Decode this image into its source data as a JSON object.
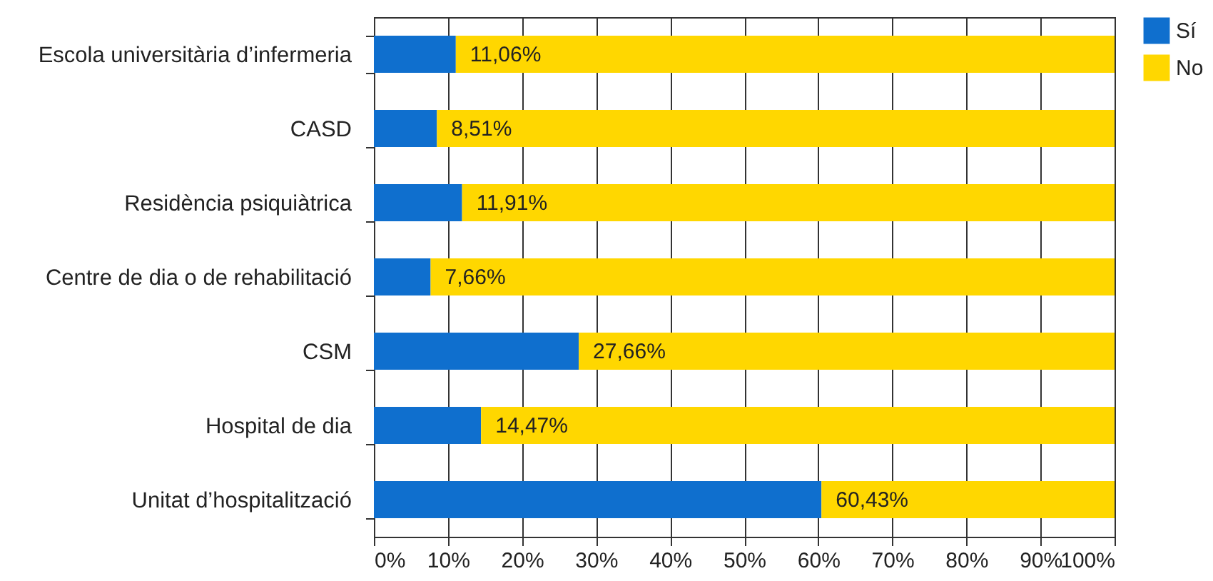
{
  "chart_data": {
    "type": "bar",
    "orientation": "horizontal",
    "stacked": true,
    "categories": [
      "Escola universitària d’infermeria",
      "CASD",
      "Residència psiquiàtrica",
      "Centre de dia o de rehabilitació",
      "CSM",
      "Hospital de dia",
      "Unitat d’hospitalització"
    ],
    "series": [
      {
        "name": "Sí",
        "color": "#0f6fce",
        "values": [
          11.06,
          8.51,
          11.91,
          7.66,
          27.66,
          14.47,
          60.43
        ],
        "value_labels": [
          "11,06%",
          "8,51%",
          "11,91%",
          "7,66%",
          "27,66%",
          "14,47%",
          "60,43%"
        ]
      },
      {
        "name": "No",
        "color": "#ffd700",
        "values": [
          88.94,
          91.49,
          88.09,
          92.34,
          72.34,
          85.53,
          39.57
        ]
      }
    ],
    "xlim": [
      0,
      100
    ],
    "xticks": [
      {
        "value": 0,
        "label": "0%"
      },
      {
        "value": 10,
        "label": "10%"
      },
      {
        "value": 20,
        "label": "20%"
      },
      {
        "value": 30,
        "label": "30%"
      },
      {
        "value": 40,
        "label": "40%"
      },
      {
        "value": 50,
        "label": "50%"
      },
      {
        "value": 60,
        "label": "60%"
      },
      {
        "value": 70,
        "label": "70%"
      },
      {
        "value": 80,
        "label": "80%"
      },
      {
        "value": 90,
        "label": "90%"
      },
      {
        "value": 100,
        "label": "100%"
      }
    ],
    "grid": "x",
    "legend": "top right"
  }
}
